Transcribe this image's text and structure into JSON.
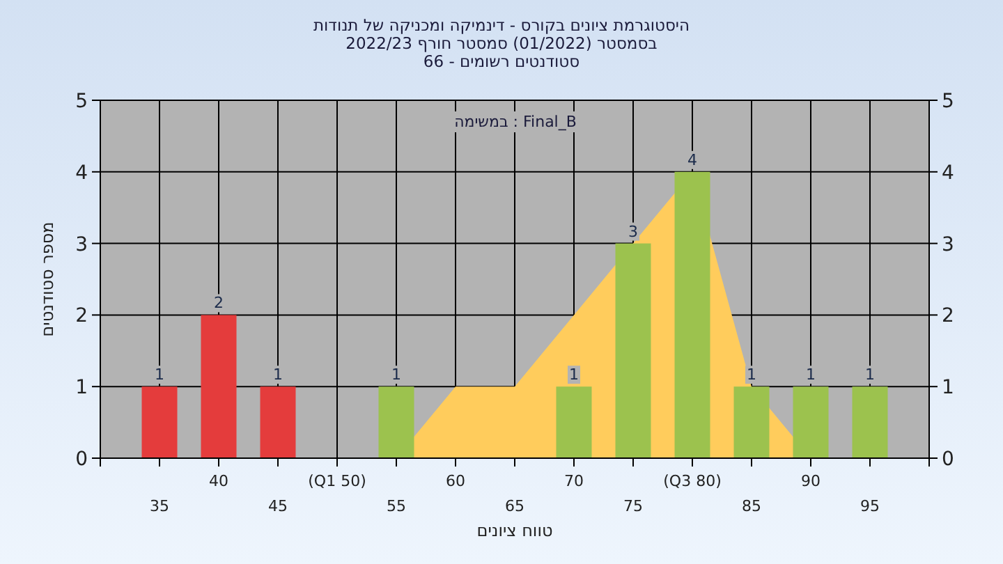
{
  "chart_data": {
    "type": "bar",
    "title": "היסטוגרמת ציונים בקורס - דינמיקה ומכניקה של תנודות",
    "subtitle": "בסמסטר  (01/2022)  סמסטר חורף 2022/23\nסטודנטים רשומים - 66",
    "xlabel": "טווח ציונים",
    "ylabel": "מספר סטודנטים",
    "annotations": [
      "במשימה : Final_B"
    ],
    "categories": [
      "35",
      "40",
      "45",
      "(Q1 50)",
      "55",
      "60",
      "65",
      "70",
      "75",
      "(Q3 80)",
      "85",
      "90",
      "95"
    ],
    "series": [
      {
        "type": "area",
        "color": "#ffcc5c",
        "values": [
          null,
          null,
          null,
          null,
          0,
          1,
          1,
          2,
          3,
          4,
          1,
          0,
          0
        ]
      },
      {
        "type": "bar",
        "colors": [
          "#e43c3c",
          "#e43c3c",
          "#e43c3c",
          "#9cc24e",
          "#9cc24e",
          "#9cc24e",
          "#9cc24e",
          "#9cc24e",
          "#9cc24e",
          "#9cc24e",
          "#9cc24e",
          "#9cc24e",
          "#9cc24e"
        ],
        "values": [
          1,
          2,
          1,
          0,
          1,
          0,
          0,
          1,
          3,
          4,
          1,
          1,
          1
        ],
        "value_labels": [
          "1",
          "2",
          "1",
          null,
          "1",
          null,
          null,
          "1",
          "3",
          "4",
          "1",
          "1",
          "1"
        ]
      }
    ],
    "ylim": [
      0,
      5
    ],
    "yticks": [
      0,
      1,
      2,
      3,
      4,
      5
    ],
    "y2lim": [
      0,
      5
    ],
    "y2ticks": [
      0,
      1,
      2,
      3,
      4,
      5
    ],
    "grid": true
  }
}
